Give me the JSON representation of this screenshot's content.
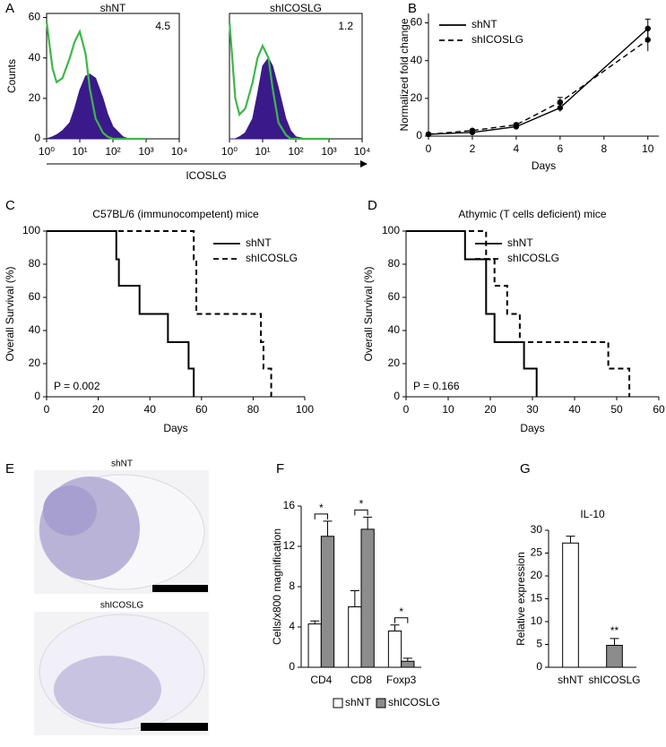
{
  "panel_letters": [
    "A",
    "B",
    "C",
    "D",
    "E",
    "F",
    "G"
  ],
  "images": [
    {
      "label": "shNT"
    },
    {
      "label": "shICOSLG"
    }
  ],
  "chart_data": [
    {
      "type": "area",
      "title": "shNT",
      "annotation": "4.5",
      "y_label": "Counts",
      "x_label": "ICOSLG",
      "log_x": true,
      "x": [
        1,
        1.5,
        2,
        3,
        5,
        7,
        10,
        15,
        20,
        30,
        50,
        70,
        100,
        200,
        300,
        1000
      ],
      "series": [
        {
          "color": "#3a1a8a",
          "fill": true,
          "values": [
            0,
            1,
            2,
            4,
            8,
            15,
            24,
            31,
            32,
            30,
            20,
            12,
            6,
            1,
            0,
            0
          ]
        },
        {
          "color": "#3cb84a",
          "fill": false,
          "values": [
            58,
            35,
            28,
            30,
            40,
            48,
            53,
            42,
            25,
            10,
            3,
            1,
            0,
            0,
            0,
            0
          ]
        }
      ],
      "xlim": [
        1,
        10000
      ],
      "xticks": [
        {
          "value": 1,
          "label": "10⁰"
        },
        {
          "value": 10,
          "label": "10¹"
        },
        {
          "value": 100,
          "label": "10²"
        },
        {
          "value": 1000,
          "label": "10³"
        },
        {
          "value": 10000,
          "label": "10⁴"
        }
      ],
      "ylim": [
        0,
        62
      ],
      "yticks": [
        0,
        20,
        40,
        60
      ]
    },
    {
      "type": "area",
      "title": "shICOSLG",
      "annotation": "1.2",
      "log_x": true,
      "x": [
        1,
        1.5,
        2,
        3,
        5,
        7,
        10,
        15,
        20,
        30,
        50,
        70,
        100,
        200,
        300,
        1000
      ],
      "series": [
        {
          "color": "#3a1a8a",
          "fill": true,
          "values": [
            0,
            0,
            1,
            3,
            10,
            22,
            36,
            40,
            36,
            25,
            10,
            4,
            1,
            0,
            0,
            0
          ]
        },
        {
          "color": "#3cb84a",
          "fill": false,
          "values": [
            58,
            20,
            12,
            15,
            28,
            40,
            46,
            40,
            25,
            8,
            2,
            0,
            0,
            0,
            0,
            0
          ]
        }
      ],
      "xlim": [
        1,
        10000
      ],
      "xticks": [
        {
          "value": 1,
          "label": "10⁰"
        },
        {
          "value": 10,
          "label": "10¹"
        },
        {
          "value": 100,
          "label": "10²"
        },
        {
          "value": 1000,
          "label": "10³"
        },
        {
          "value": 10000,
          "label": "10⁴"
        }
      ],
      "ylim": [
        0,
        62
      ]
    },
    {
      "type": "line",
      "x_label": "Days",
      "y_label": "Normalized fold change",
      "legend": "upper left",
      "x": [
        0,
        2,
        4,
        6,
        10
      ],
      "series": [
        {
          "name": "shNT",
          "color": "#000000",
          "dash": false,
          "values": [
            1,
            2,
            5,
            15,
            57
          ],
          "errors": [
            0.5,
            0.5,
            0.8,
            2,
            5
          ]
        },
        {
          "name": "shICOSLG",
          "color": "#000000",
          "dash": true,
          "values": [
            1,
            3,
            6,
            18,
            51
          ],
          "errors": [
            0.5,
            0.5,
            0.8,
            2.5,
            6
          ]
        }
      ],
      "xlim": [
        0,
        10.5
      ],
      "xticks": [
        0,
        2,
        4,
        6,
        8,
        10
      ],
      "ylim": [
        0,
        65
      ],
      "yticks": [
        0,
        20,
        40,
        60
      ]
    },
    {
      "type": "line",
      "step": true,
      "title": "C57BL/6 (immunocompetent) mice",
      "x_label": "Days",
      "y_label": "Overall Survival (%)",
      "annotation": "P = 0.002",
      "legend": "upper right",
      "series": [
        {
          "name": "shNT",
          "color": "#000000",
          "dash": false,
          "x": [
            0,
            27,
            28,
            36,
            47,
            55,
            57
          ],
          "values": [
            100,
            83,
            67,
            50,
            33,
            17,
            0
          ]
        },
        {
          "name": "shICOSLG",
          "color": "#000000",
          "dash": true,
          "x": [
            0,
            57,
            58,
            83,
            84,
            87
          ],
          "values": [
            100,
            83,
            50,
            33,
            17,
            0
          ]
        }
      ],
      "xlim": [
        0,
        100
      ],
      "xticks": [
        0,
        20,
        40,
        60,
        80,
        100
      ],
      "ylim": [
        0,
        100
      ],
      "yticks": [
        0,
        20,
        40,
        60,
        80,
        100
      ]
    },
    {
      "type": "line",
      "step": true,
      "title": "Athymic (T cells deficient) mice",
      "x_label": "Days",
      "y_label": "Overall Survival (%)",
      "annotation": "P = 0.166",
      "legend": "upper right",
      "series": [
        {
          "name": "shNT",
          "color": "#000000",
          "dash": false,
          "x": [
            0,
            14,
            19,
            21,
            28,
            31
          ],
          "values": [
            100,
            83,
            50,
            33,
            17,
            0
          ]
        },
        {
          "name": "shICOSLG",
          "color": "#000000",
          "dash": true,
          "x": [
            0,
            19,
            21,
            24,
            27,
            48,
            53
          ],
          "values": [
            100,
            83,
            67,
            50,
            33,
            17,
            0
          ]
        }
      ],
      "xlim": [
        0,
        60
      ],
      "xticks": [
        0,
        10,
        20,
        30,
        40,
        50,
        60
      ],
      "ylim": [
        0,
        100
      ],
      "yticks": [
        0,
        20,
        40,
        60,
        80,
        100
      ]
    },
    {
      "type": "bar",
      "y_label": "Cells/x800 magnification",
      "legend": "bottom",
      "categories": [
        "CD4",
        "CD8",
        "Foxp3"
      ],
      "series": [
        {
          "name": "shNT",
          "color": "#ffffff",
          "values": [
            4.3,
            6,
            3.6
          ],
          "errors": [
            0.3,
            1.6,
            0.6
          ]
        },
        {
          "name": "shICOSLG",
          "color": "#8c8c8c",
          "values": [
            13,
            13.7,
            0.6
          ],
          "errors": [
            1.5,
            1.2,
            0.3
          ]
        }
      ],
      "significance": [
        "*",
        "*",
        "*"
      ],
      "ylim": [
        0,
        16
      ],
      "yticks": [
        0,
        4,
        8,
        12,
        16
      ]
    },
    {
      "type": "bar",
      "title": "IL-10",
      "y_label": "Relative expression",
      "categories": [
        "shNT",
        "shICOSLG"
      ],
      "series": [
        {
          "colors": [
            "#ffffff",
            "#8c8c8c"
          ],
          "values": [
            27.2,
            4.8
          ],
          "errors": [
            1.5,
            1.5
          ]
        }
      ],
      "significance": [
        null,
        "**"
      ],
      "ylim": [
        0,
        30
      ],
      "yticks": [
        0,
        5,
        10,
        15,
        20,
        25,
        30
      ]
    }
  ]
}
